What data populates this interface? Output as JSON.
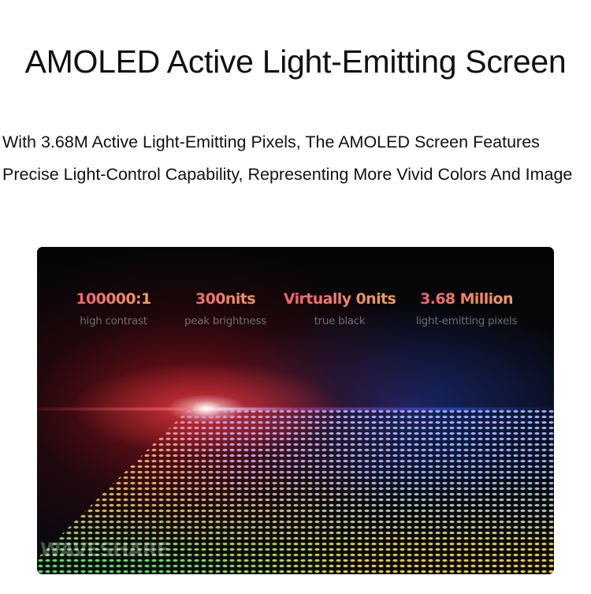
{
  "title": "AMOLED Active Light-Emitting Screen",
  "description": "With 3.68M Active Light-Emitting Pixels, The AMOLED Screen Features Precise Light-Control Capability, Representing More Vivid Colors And Image",
  "stats": [
    {
      "value": "100000:1",
      "label": "high contrast"
    },
    {
      "value": "300nits",
      "label": "peak brightness"
    },
    {
      "value": "Virtually 0nits",
      "label": "true black"
    },
    {
      "value": "3.68 Million",
      "label": "light-emitting pixels"
    }
  ],
  "watermark": "WAVESHARE",
  "colors": {
    "stat_gradient_start": "#f06070",
    "stat_gradient_end": "#f0a060",
    "panel_bg": "#050507"
  }
}
